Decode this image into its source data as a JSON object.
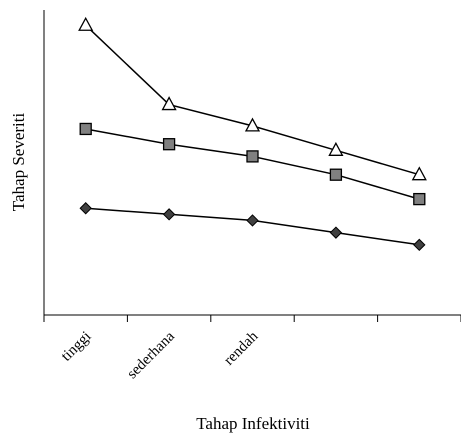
{
  "chart_data": {
    "type": "line",
    "xlabel": "Tahap Infektiviti",
    "ylabel": "Tahap Severiti",
    "categories": [
      "tinggi",
      "sederhana",
      "rendah",
      "",
      ""
    ],
    "ylim": [
      0,
      100
    ],
    "grid": false,
    "legend": "none",
    "series": [
      {
        "marker": "triangle",
        "fill": "#ffffff",
        "values": [
          95,
          69,
          62,
          54,
          46
        ]
      },
      {
        "marker": "square",
        "fill": "#808080",
        "values": [
          61,
          56,
          52,
          46,
          38
        ]
      },
      {
        "marker": "diamond",
        "fill": "#404040",
        "values": [
          35,
          33,
          31,
          27,
          23
        ]
      }
    ]
  }
}
